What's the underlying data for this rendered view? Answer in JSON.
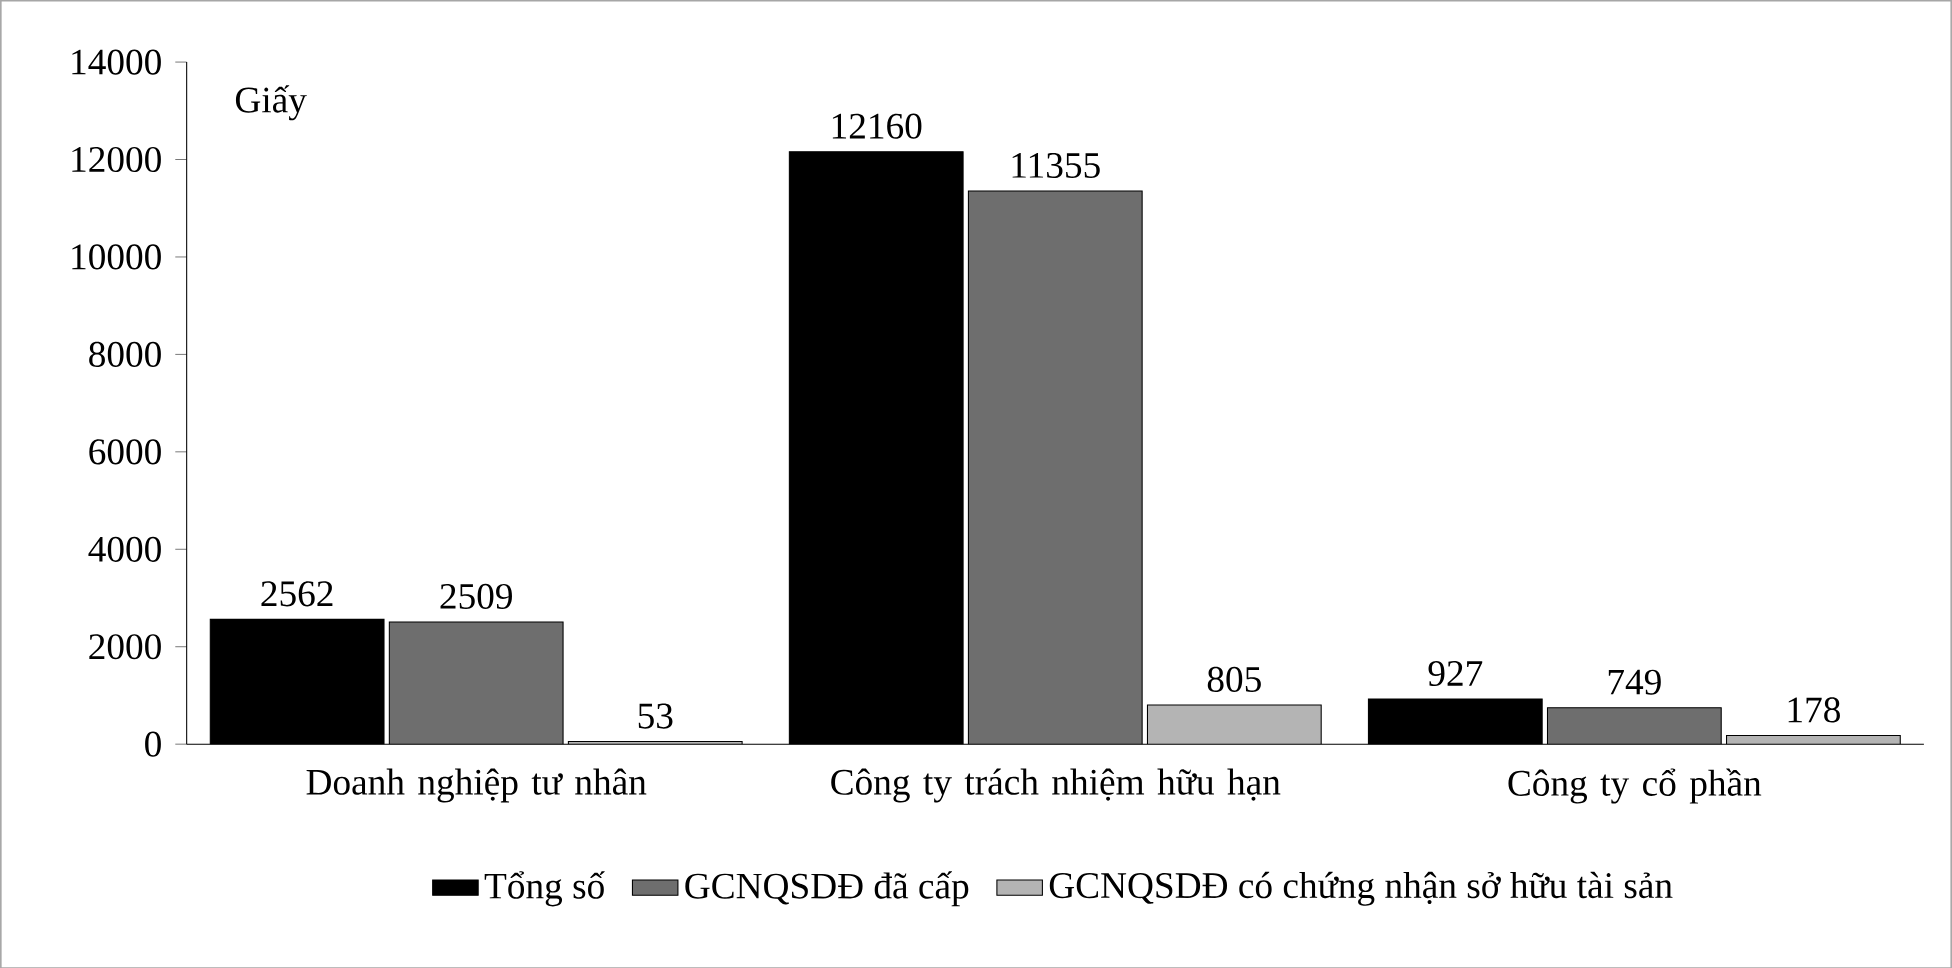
{
  "chart_data": {
    "type": "bar",
    "ylabel": "Giấy",
    "categories": [
      "Doanh nghiệp tư nhân",
      "Công ty trách nhiệm hữu hạn",
      "Công ty cổ phần"
    ],
    "series": [
      {
        "name": "Tổng số",
        "color": "#000000",
        "values": [
          2562,
          12160,
          927
        ]
      },
      {
        "name": "GCNQSDĐ đã cấp",
        "color": "#6e6e6e",
        "values": [
          2509,
          11355,
          749
        ]
      },
      {
        "name": "GCNQSDĐ có chứng nhận sở hữu tài sản",
        "color": "#b4b4b4",
        "values": [
          53,
          805,
          178
        ]
      }
    ],
    "ylim": [
      0,
      14000
    ],
    "yticks": [
      0,
      2000,
      4000,
      6000,
      8000,
      10000,
      12000,
      14000
    ],
    "data_labels": true,
    "legend": "bottom",
    "grid": false
  }
}
